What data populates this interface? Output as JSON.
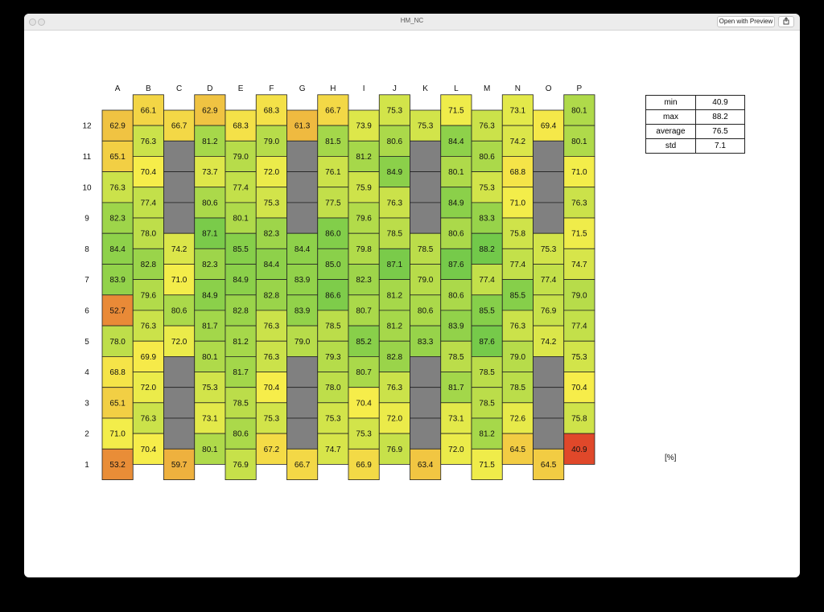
{
  "window": {
    "title": "HM_NC",
    "open_with_label": "Open with Preview",
    "share_icon": "share-icon"
  },
  "unit_label": "[%]",
  "stats": [
    {
      "label": "min",
      "value": "40.9"
    },
    {
      "label": "max",
      "value": "88.2"
    },
    {
      "label": "average",
      "value": "76.5"
    },
    {
      "label": "std",
      "value": "7.1"
    }
  ],
  "chart_data": {
    "type": "heatmap",
    "columns": [
      "A",
      "B",
      "C",
      "D",
      "E",
      "F",
      "G",
      "H",
      "I",
      "J",
      "K",
      "L",
      "M",
      "N",
      "O",
      "P"
    ],
    "row_labels": [
      "12",
      "11",
      "10",
      "9",
      "8",
      "7",
      "6",
      "5",
      "4",
      "3",
      "2",
      "1"
    ],
    "offset_columns": [
      "B",
      "D",
      "F",
      "H",
      "J",
      "L",
      "N",
      "P"
    ],
    "missing_color": "#808080",
    "values": {
      "A": [
        "62.9",
        "65.1",
        "76.3",
        "82.3",
        "84.4",
        "83.9",
        "52.7",
        "78.0",
        "68.8",
        "65.1",
        "71.0",
        "53.2"
      ],
      "B": [
        "66.1",
        "76.3",
        "70.4",
        "77.4",
        "78.0",
        "82.8",
        "79.6",
        "76.3",
        "69.9",
        "72.0",
        "76.3",
        "70.4"
      ],
      "C": [
        "66.7",
        null,
        null,
        null,
        "74.2",
        "71.0",
        "80.6",
        "72.0",
        null,
        null,
        null,
        "59.7"
      ],
      "D": [
        "62.9",
        "81.2",
        "73.7",
        "80.6",
        "87.1",
        "82.3",
        "84.9",
        "81.7",
        "80.1",
        "75.3",
        "73.1",
        "80.1"
      ],
      "E": [
        "68.3",
        "79.0",
        "77.4",
        "80.1",
        "85.5",
        "84.9",
        "82.8",
        "81.2",
        "81.7",
        "78.5",
        "80.6",
        "76.9"
      ],
      "F": [
        "68.3",
        "79.0",
        "72.0",
        "75.3",
        "82.3",
        "84.4",
        "82.8",
        "76.3",
        "76.3",
        "70.4",
        "75.3",
        "67.2"
      ],
      "G": [
        "61.3",
        null,
        null,
        null,
        "84.4",
        "83.9",
        "83.9",
        "79.0",
        null,
        null,
        null,
        "66.7"
      ],
      "H": [
        "66.7",
        "81.5",
        "76.1",
        "77.5",
        "86.0",
        "85.0",
        "86.6",
        "78.5",
        "79.3",
        "78.0",
        "75.3",
        "74.7"
      ],
      "I": [
        "73.9",
        "81.2",
        "75.9",
        "79.6",
        "79.8",
        "82.3",
        "80.7",
        "85.2",
        "80.7",
        "70.4",
        "75.3",
        "66.9"
      ],
      "J": [
        "75.3",
        "80.6",
        "84.9",
        "76.3",
        "78.5",
        "87.1",
        "81.2",
        "81.2",
        "82.8",
        "76.3",
        "72.0",
        "76.9"
      ],
      "K": [
        "75.3",
        null,
        null,
        null,
        "78.5",
        "79.0",
        "80.6",
        "83.3",
        null,
        null,
        null,
        "63.4"
      ],
      "L": [
        "71.5",
        "84.4",
        "80.1",
        "84.9",
        "80.6",
        "87.6",
        "80.6",
        "83.9",
        "78.5",
        "81.7",
        "73.1",
        "72.0"
      ],
      "M": [
        "76.3",
        "80.6",
        "75.3",
        "83.3",
        "88.2",
        "77.4",
        "85.5",
        "87.6",
        "78.5",
        "78.5",
        "81.2",
        "71.5"
      ],
      "N": [
        "73.1",
        "74.2",
        "68.8",
        "71.0",
        "75.8",
        "77.4",
        "85.5",
        "76.3",
        "79.0",
        "78.5",
        "72.6",
        "64.5"
      ],
      "O": [
        "69.4",
        null,
        null,
        null,
        "75.3",
        "77.4",
        "76.9",
        "74.2",
        null,
        null,
        null,
        "64.5"
      ],
      "P": [
        "80.1",
        "80.1",
        "71.0",
        "76.3",
        "71.5",
        "74.7",
        "79.0",
        "77.4",
        "75.3",
        "70.4",
        "75.8",
        "40.9"
      ]
    },
    "color_scale": {
      "min": 40.9,
      "max": 88.2,
      "low_color": "#e0482a",
      "mid_color": "#f6ee4a",
      "high_color": "#72c94a"
    }
  }
}
